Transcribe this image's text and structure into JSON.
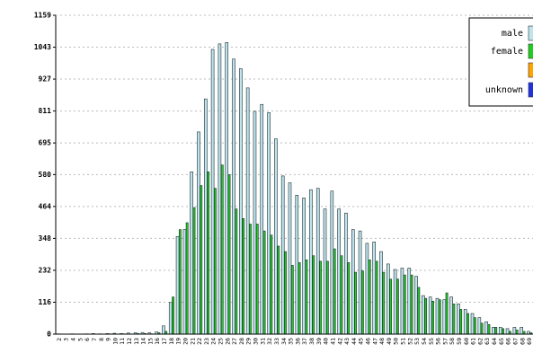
{
  "chart_data": {
    "type": "bar",
    "categories": [
      "2",
      "3",
      "4",
      "5",
      "6",
      "7",
      "8",
      "9",
      "10",
      "11",
      "12",
      "13",
      "14",
      "15",
      "16",
      "17",
      "18",
      "19",
      "20",
      "21",
      "22",
      "23",
      "24",
      "25",
      "26",
      "27",
      "28",
      "29",
      "30",
      "31",
      "32",
      "33",
      "34",
      "35",
      "36",
      "37",
      "38",
      "39",
      "40",
      "41",
      "42",
      "43",
      "44",
      "45",
      "46",
      "47",
      "48",
      "49",
      "50",
      "51",
      "52",
      "53",
      "54",
      "55",
      "56",
      "57",
      "58",
      "59",
      "60",
      "61",
      "62",
      "63",
      "64",
      "65",
      "66",
      "67",
      "68",
      "69"
    ],
    "series": [
      {
        "name": "male",
        "color": "#bfe4ec",
        "values": [
          1,
          0,
          1,
          0,
          1,
          2,
          1,
          2,
          3,
          2,
          4,
          5,
          6,
          5,
          8,
          30,
          115,
          355,
          380,
          590,
          735,
          855,
          1035,
          1055,
          1060,
          1000,
          965,
          895,
          810,
          835,
          805,
          710,
          575,
          550,
          505,
          495,
          525,
          530,
          455,
          520,
          455,
          440,
          380,
          375,
          330,
          335,
          300,
          255,
          235,
          240,
          240,
          210,
          140,
          135,
          130,
          125,
          135,
          110,
          90,
          75,
          60,
          45,
          25,
          25,
          20,
          25,
          25,
          10
        ]
      },
      {
        "name": "female",
        "color": "#22cc22",
        "values": [
          0,
          0,
          0,
          0,
          0,
          0,
          0,
          1,
          0,
          1,
          0,
          2,
          2,
          1,
          5,
          10,
          135,
          380,
          405,
          460,
          540,
          590,
          530,
          615,
          580,
          455,
          420,
          400,
          400,
          375,
          360,
          320,
          300,
          250,
          260,
          270,
          285,
          265,
          265,
          310,
          285,
          260,
          225,
          230,
          270,
          265,
          225,
          200,
          200,
          215,
          215,
          170,
          130,
          120,
          125,
          150,
          110,
          90,
          75,
          60,
          40,
          35,
          25,
          20,
          10,
          15,
          10,
          5
        ]
      },
      {
        "name": null,
        "color": "#ffa500",
        "values": [
          0,
          0,
          0,
          0,
          0,
          0,
          0,
          0,
          0,
          0,
          0,
          0,
          0,
          0,
          0,
          0,
          0,
          0,
          0,
          0,
          0,
          0,
          0,
          0,
          0,
          0,
          0,
          0,
          0,
          0,
          0,
          0,
          0,
          0,
          0,
          0,
          0,
          0,
          0,
          0,
          0,
          0,
          0,
          0,
          0,
          0,
          0,
          0,
          0,
          0,
          0,
          0,
          0,
          0,
          0,
          0,
          0,
          0,
          0,
          0,
          0,
          0,
          0,
          0,
          0,
          0,
          0,
          0
        ]
      },
      {
        "name": "unknown",
        "color": "#2233dd",
        "values": [
          0,
          0,
          0,
          0,
          0,
          0,
          0,
          0,
          0,
          0,
          0,
          0,
          0,
          0,
          0,
          0,
          0,
          0,
          0,
          0,
          0,
          0,
          0,
          0,
          0,
          0,
          0,
          0,
          0,
          0,
          0,
          0,
          0,
          0,
          0,
          0,
          0,
          0,
          0,
          0,
          0,
          0,
          0,
          0,
          0,
          0,
          0,
          0,
          0,
          0,
          0,
          0,
          0,
          0,
          0,
          0,
          0,
          0,
          0,
          0,
          0,
          0,
          0,
          0,
          0,
          0,
          0,
          0
        ]
      }
    ],
    "ylim": [
      0,
      1159
    ],
    "yticks": [
      0,
      116,
      232,
      348,
      464,
      580,
      695,
      811,
      927,
      1043,
      1159
    ],
    "grid": true
  }
}
